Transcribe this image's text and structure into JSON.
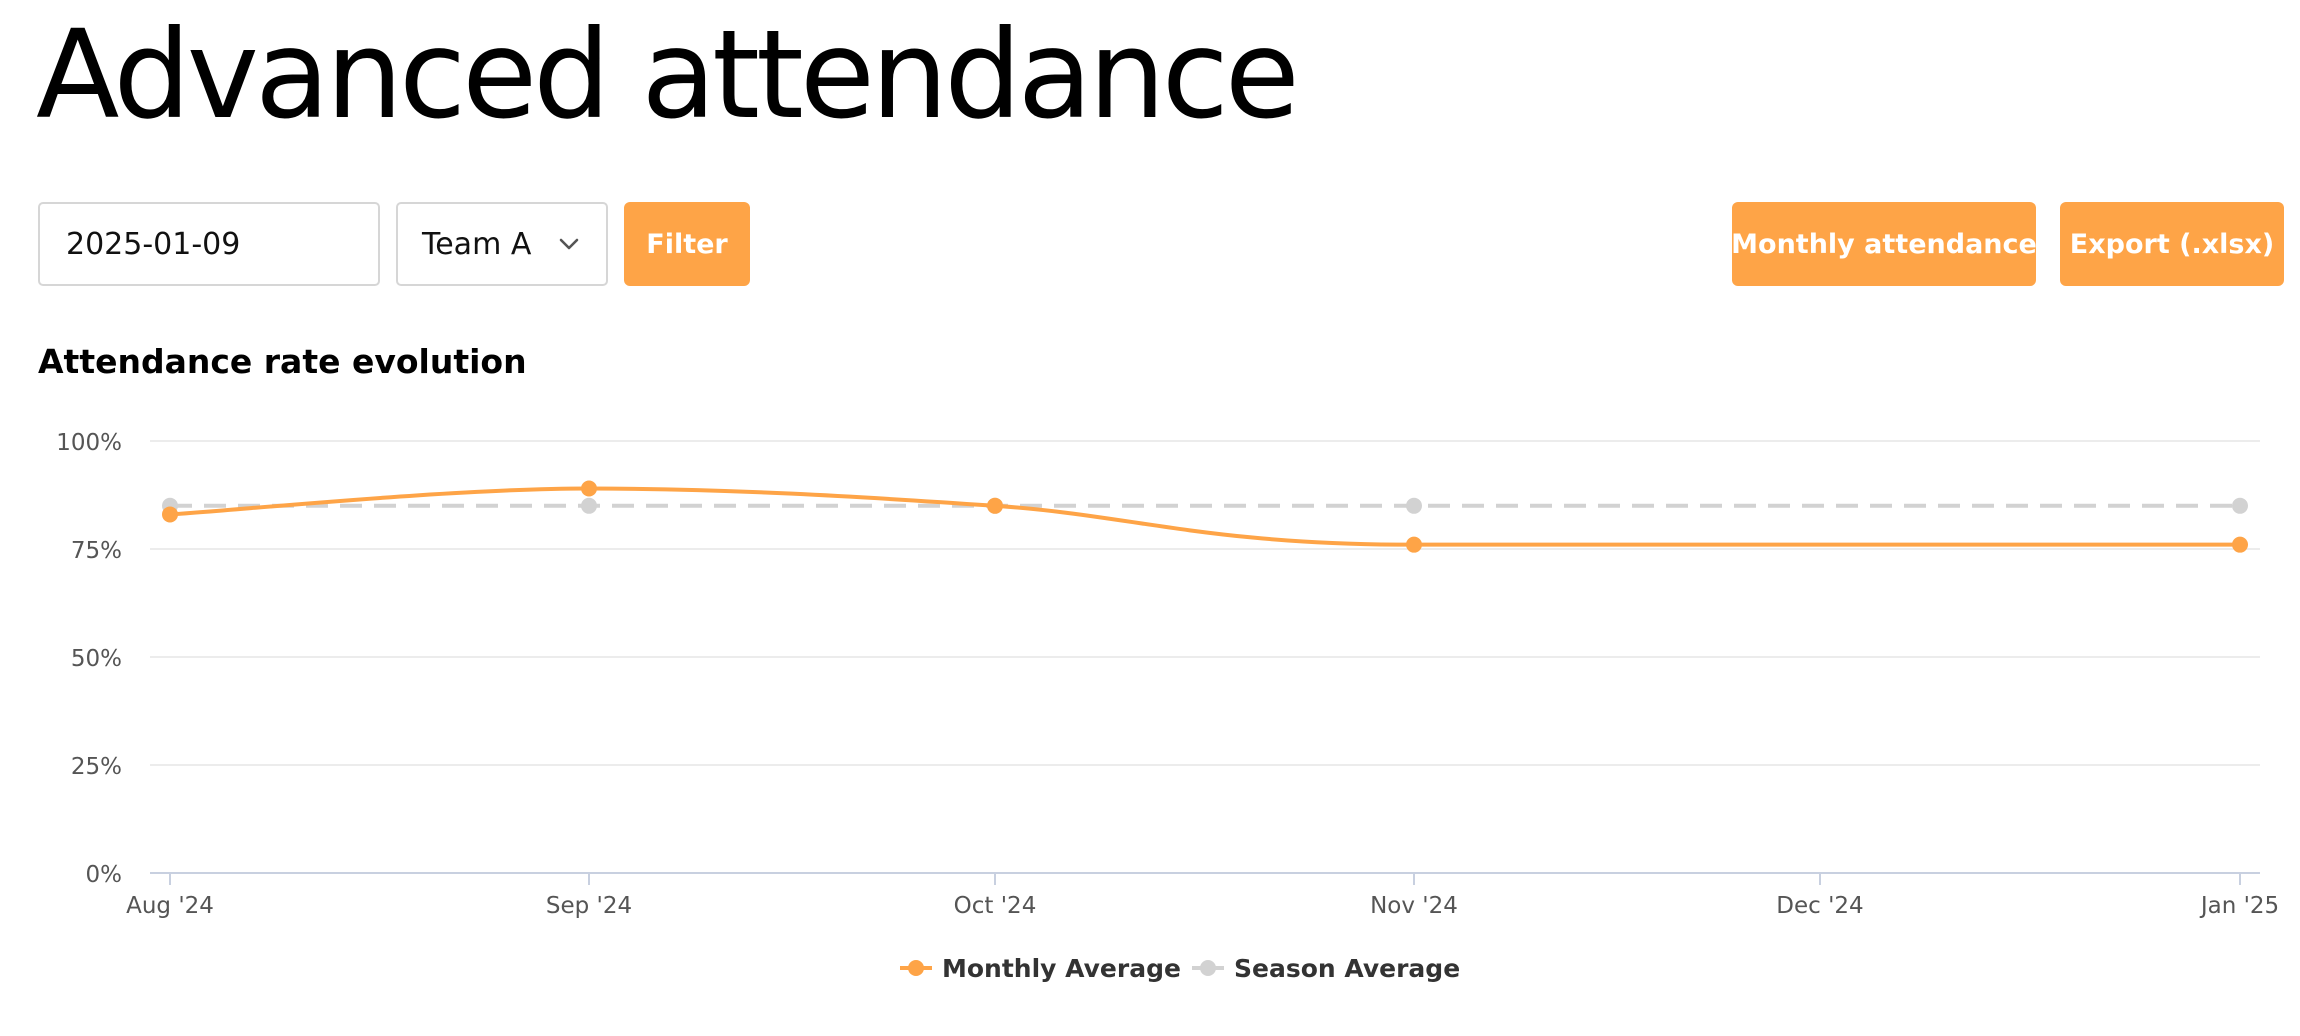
{
  "page": {
    "title": "Advanced attendance"
  },
  "filters": {
    "date_value": "2025-01-09",
    "team_value": "Team A",
    "filter_label": "Filter"
  },
  "actions": {
    "monthly_label": "Monthly attendance",
    "export_label": "Export (.xlsx)"
  },
  "colors": {
    "accent": "#fea447",
    "monthly_series": "#fea447",
    "season_series": "#d2d2d2",
    "gridline": "#e6e6e6",
    "axis_text": "#555555"
  },
  "icons": {
    "team_select": "chevron-down-icon"
  },
  "chart_data": {
    "type": "line",
    "title": "Attendance rate evolution",
    "categories": [
      "Aug '24",
      "Sep '24",
      "Oct '24",
      "Nov '24",
      "Dec '24",
      "Jan '25"
    ],
    "y_ticks": [
      "0%",
      "25%",
      "50%",
      "75%",
      "100%"
    ],
    "ylim": [
      0,
      100
    ],
    "y_unit": "%",
    "grid": true,
    "legend_position": "bottom",
    "series": [
      {
        "name": "Monthly Average",
        "color": "#fea447",
        "style": "smooth",
        "points": [
          {
            "x": "Aug '24",
            "y": 83
          },
          {
            "x": "Sep '24",
            "y": 89
          },
          {
            "x": "Oct '24",
            "y": 85
          },
          {
            "x": "Nov '24",
            "y": 76
          },
          {
            "x": "Jan '25",
            "y": 76
          }
        ]
      },
      {
        "name": "Season Average",
        "color": "#d2d2d2",
        "style": "dashed",
        "points": [
          {
            "x": "Aug '24",
            "y": 85
          },
          {
            "x": "Sep '24",
            "y": 85
          },
          {
            "x": "Oct '24",
            "y": 85
          },
          {
            "x": "Nov '24",
            "y": 85
          },
          {
            "x": "Jan '25",
            "y": 85
          }
        ]
      }
    ]
  }
}
